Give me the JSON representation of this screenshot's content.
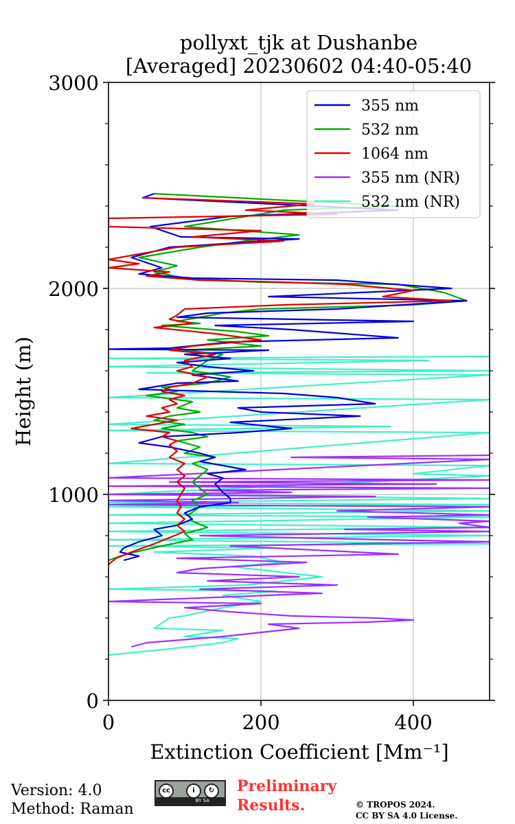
{
  "footer": {
    "version": "Version: 4.0",
    "method": "Method: Raman",
    "license_badge": "cc",
    "license_badge_sub": "BY SA",
    "preliminary_line1": "Preliminary",
    "preliminary_line2": "Results.",
    "copyright_line1": "© TROPOS 2024.",
    "copyright_line2": "CC BY SA 4.0 License."
  },
  "colors": {
    "355": "#0000dd",
    "532": "#00aa00",
    "1064": "#dd0000",
    "355nr": "#9b30ff",
    "532nr": "#40f0c8",
    "grid": "#b0b0b0"
  },
  "chart_data": {
    "type": "line",
    "title_line1": "pollyxt_tjk at Dushanbe",
    "title_line2": "[Averaged] 20230602 04:40-05:40",
    "xlabel": "Extinction Coefficient [Mm⁻¹]",
    "ylabel": "Height (m)",
    "xlim": [
      0,
      500
    ],
    "ylim": [
      0,
      3000
    ],
    "xticks": [
      0,
      200,
      400
    ],
    "yticks": [
      0,
      1000,
      2000,
      3000
    ],
    "grid": true,
    "legend_position": "top-right",
    "series": [
      {
        "name": "355 nm",
        "color_key": "355",
        "points": [
          [
            60,
            2460
          ],
          [
            45,
            2440
          ],
          [
            380,
            2380
          ],
          [
            160,
            2350
          ],
          [
            55,
            2300
          ],
          [
            95,
            2250
          ],
          [
            250,
            2240
          ],
          [
            80,
            2200
          ],
          [
            30,
            2150
          ],
          [
            70,
            2100
          ],
          [
            40,
            2070
          ],
          [
            110,
            2050
          ],
          [
            300,
            2040
          ],
          [
            450,
            2000
          ],
          [
            210,
            1960
          ],
          [
            470,
            1940
          ],
          [
            300,
            1900
          ],
          [
            130,
            1880
          ],
          [
            90,
            1860
          ],
          [
            400,
            1840
          ],
          [
            140,
            1820
          ],
          [
            240,
            1800
          ],
          [
            380,
            1760
          ],
          [
            160,
            1740
          ],
          [
            80,
            1710
          ],
          [
            0,
            1705
          ],
          [
            210,
            1700
          ],
          [
            100,
            1680
          ],
          [
            160,
            1660
          ],
          [
            90,
            1640
          ],
          [
            130,
            1620
          ],
          [
            190,
            1600
          ],
          [
            110,
            1580
          ],
          [
            170,
            1550
          ],
          [
            90,
            1540
          ],
          [
            40,
            1510
          ],
          [
            230,
            1490
          ],
          [
            300,
            1470
          ],
          [
            350,
            1440
          ],
          [
            170,
            1420
          ],
          [
            200,
            1400
          ],
          [
            330,
            1380
          ],
          [
            160,
            1350
          ],
          [
            240,
            1320
          ],
          [
            170,
            1300
          ],
          [
            70,
            1280
          ],
          [
            40,
            1250
          ],
          [
            80,
            1230
          ],
          [
            120,
            1200
          ],
          [
            140,
            1180
          ],
          [
            120,
            1160
          ],
          [
            150,
            1140
          ],
          [
            180,
            1120
          ],
          [
            130,
            1100
          ],
          [
            150,
            1080
          ],
          [
            140,
            1050
          ],
          [
            150,
            1010
          ],
          [
            160,
            980
          ],
          [
            160,
            960
          ],
          [
            120,
            940
          ],
          [
            100,
            910
          ],
          [
            110,
            880
          ],
          [
            90,
            850
          ],
          [
            60,
            830
          ],
          [
            70,
            800
          ],
          [
            40,
            770
          ],
          [
            20,
            740
          ],
          [
            15,
            720
          ],
          [
            40,
            700
          ],
          [
            20,
            680
          ]
        ]
      },
      {
        "name": "532 nm",
        "color_key": "532",
        "points": [
          [
            60,
            2460
          ],
          [
            380,
            2400
          ],
          [
            230,
            2380
          ],
          [
            100,
            2300
          ],
          [
            250,
            2260
          ],
          [
            180,
            2230
          ],
          [
            120,
            2200
          ],
          [
            40,
            2150
          ],
          [
            90,
            2110
          ],
          [
            60,
            2080
          ],
          [
            100,
            2050
          ],
          [
            200,
            2030
          ],
          [
            380,
            2020
          ],
          [
            440,
            1980
          ],
          [
            470,
            1940
          ],
          [
            400,
            1920
          ],
          [
            200,
            1900
          ],
          [
            150,
            1880
          ],
          [
            120,
            1860
          ],
          [
            90,
            1840
          ],
          [
            120,
            1830
          ],
          [
            70,
            1820
          ],
          [
            170,
            1790
          ],
          [
            210,
            1770
          ],
          [
            130,
            1750
          ],
          [
            200,
            1720
          ],
          [
            100,
            1700
          ],
          [
            150,
            1680
          ],
          [
            130,
            1650
          ],
          [
            110,
            1600
          ],
          [
            160,
            1570
          ],
          [
            130,
            1540
          ],
          [
            70,
            1520
          ],
          [
            90,
            1500
          ],
          [
            50,
            1480
          ],
          [
            110,
            1450
          ],
          [
            90,
            1420
          ],
          [
            120,
            1400
          ],
          [
            80,
            1380
          ],
          [
            60,
            1360
          ],
          [
            100,
            1340
          ],
          [
            70,
            1320
          ],
          [
            110,
            1300
          ],
          [
            130,
            1280
          ],
          [
            90,
            1260
          ],
          [
            120,
            1230
          ],
          [
            100,
            1200
          ],
          [
            140,
            1180
          ],
          [
            110,
            1150
          ],
          [
            130,
            1120
          ],
          [
            120,
            1090
          ],
          [
            110,
            1060
          ],
          [
            120,
            1030
          ],
          [
            130,
            1000
          ],
          [
            110,
            970
          ],
          [
            120,
            940
          ],
          [
            105,
            900
          ],
          [
            110,
            870
          ],
          [
            130,
            840
          ],
          [
            100,
            810
          ],
          [
            110,
            780
          ],
          [
            70,
            750
          ],
          [
            35,
            720
          ],
          [
            15,
            700
          ],
          [
            0,
            680
          ]
        ]
      },
      {
        "name": "1064 nm",
        "color_key": "1064",
        "points": [
          [
            45,
            2440
          ],
          [
            270,
            2410
          ],
          [
            180,
            2380
          ],
          [
            300,
            2360
          ],
          [
            0,
            2340
          ],
          [
            0,
            2300
          ],
          [
            200,
            2280
          ],
          [
            110,
            2250
          ],
          [
            230,
            2230
          ],
          [
            90,
            2200
          ],
          [
            0,
            2140
          ],
          [
            40,
            2120
          ],
          [
            0,
            2100
          ],
          [
            80,
            2080
          ],
          [
            50,
            2060
          ],
          [
            120,
            2040
          ],
          [
            230,
            2030
          ],
          [
            310,
            2020
          ],
          [
            400,
            1990
          ],
          [
            360,
            1960
          ],
          [
            450,
            1940
          ],
          [
            230,
            1920
          ],
          [
            100,
            1900
          ],
          [
            90,
            1870
          ],
          [
            80,
            1850
          ],
          [
            110,
            1830
          ],
          [
            60,
            1810
          ],
          [
            140,
            1780
          ],
          [
            200,
            1750
          ],
          [
            110,
            1720
          ],
          [
            80,
            1700
          ],
          [
            140,
            1680
          ],
          [
            100,
            1650
          ],
          [
            110,
            1620
          ],
          [
            90,
            1600
          ],
          [
            130,
            1570
          ],
          [
            110,
            1540
          ],
          [
            80,
            1520
          ],
          [
            70,
            1500
          ],
          [
            100,
            1480
          ],
          [
            80,
            1460
          ],
          [
            90,
            1440
          ],
          [
            70,
            1420
          ],
          [
            80,
            1400
          ],
          [
            50,
            1380
          ],
          [
            90,
            1360
          ],
          [
            60,
            1340
          ],
          [
            30,
            1320
          ],
          [
            80,
            1300
          ],
          [
            70,
            1280
          ],
          [
            90,
            1260
          ],
          [
            80,
            1240
          ],
          [
            90,
            1210
          ],
          [
            80,
            1180
          ],
          [
            100,
            1150
          ],
          [
            90,
            1120
          ],
          [
            100,
            1090
          ],
          [
            90,
            1060
          ],
          [
            100,
            1030
          ],
          [
            95,
            1000
          ],
          [
            90,
            970
          ],
          [
            95,
            940
          ],
          [
            90,
            910
          ],
          [
            100,
            880
          ],
          [
            90,
            850
          ],
          [
            100,
            820
          ],
          [
            80,
            790
          ],
          [
            60,
            760
          ],
          [
            30,
            720
          ],
          [
            10,
            690
          ],
          [
            0,
            660
          ]
        ]
      },
      {
        "name": "355 nm (NR)",
        "color_key": "355nr",
        "points": [
          [
            500,
            1190
          ],
          [
            240,
            1180
          ],
          [
            500,
            1170
          ],
          [
            0,
            1080
          ],
          [
            500,
            1070
          ],
          [
            80,
            1060
          ],
          [
            430,
            1050
          ],
          [
            0,
            1040
          ],
          [
            500,
            1030
          ],
          [
            120,
            1020
          ],
          [
            240,
            1010
          ],
          [
            0,
            1000
          ],
          [
            350,
            990
          ],
          [
            0,
            970
          ],
          [
            170,
            960
          ],
          [
            0,
            950
          ],
          [
            500,
            940
          ],
          [
            300,
            920
          ],
          [
            500,
            900
          ],
          [
            340,
            890
          ],
          [
            500,
            870
          ],
          [
            460,
            860
          ],
          [
            500,
            840
          ],
          [
            310,
            830
          ],
          [
            500,
            820
          ],
          [
            120,
            800
          ],
          [
            360,
            780
          ],
          [
            500,
            770
          ],
          [
            160,
            750
          ],
          [
            380,
            710
          ],
          [
            90,
            690
          ],
          [
            260,
            670
          ],
          [
            120,
            640
          ],
          [
            90,
            620
          ],
          [
            250,
            600
          ],
          [
            130,
            580
          ],
          [
            300,
            560
          ],
          [
            120,
            540
          ],
          [
            280,
            520
          ],
          [
            140,
            500
          ],
          [
            0,
            480
          ],
          [
            200,
            470
          ],
          [
            100,
            450
          ],
          [
            160,
            430
          ],
          [
            240,
            410
          ],
          [
            350,
            400
          ],
          [
            400,
            390
          ],
          [
            340,
            380
          ],
          [
            210,
            370
          ],
          [
            250,
            350
          ],
          [
            200,
            330
          ],
          [
            150,
            310
          ],
          [
            50,
            280
          ],
          [
            30,
            260
          ]
        ]
      },
      {
        "name": "532 nm (NR)",
        "color_key": "532nr",
        "points": [
          [
            500,
            1670
          ],
          [
            0,
            1660
          ],
          [
            420,
            1650
          ],
          [
            0,
            1620
          ],
          [
            500,
            1600
          ],
          [
            50,
            1590
          ],
          [
            500,
            1580
          ],
          [
            0,
            1470
          ],
          [
            500,
            1460
          ],
          [
            0,
            1340
          ],
          [
            370,
            1330
          ],
          [
            0,
            1310
          ],
          [
            500,
            1300
          ],
          [
            0,
            1150
          ],
          [
            500,
            1140
          ],
          [
            400,
            1100
          ],
          [
            500,
            1090
          ],
          [
            0,
            1000
          ],
          [
            500,
            980
          ],
          [
            0,
            960
          ],
          [
            500,
            950
          ],
          [
            0,
            940
          ],
          [
            500,
            920
          ],
          [
            0,
            900
          ],
          [
            500,
            890
          ],
          [
            0,
            860
          ],
          [
            500,
            840
          ],
          [
            0,
            820
          ],
          [
            500,
            800
          ],
          [
            0,
            780
          ],
          [
            500,
            760
          ],
          [
            0,
            750
          ],
          [
            220,
            740
          ],
          [
            60,
            720
          ],
          [
            190,
            700
          ],
          [
            230,
            670
          ],
          [
            160,
            650
          ],
          [
            280,
            600
          ],
          [
            180,
            560
          ],
          [
            0,
            540
          ],
          [
            220,
            530
          ],
          [
            150,
            510
          ],
          [
            200,
            480
          ],
          [
            150,
            450
          ],
          [
            100,
            410
          ],
          [
            80,
            400
          ],
          [
            60,
            350
          ],
          [
            150,
            340
          ],
          [
            100,
            310
          ],
          [
            170,
            300
          ],
          [
            150,
            280
          ],
          [
            80,
            250
          ],
          [
            0,
            220
          ]
        ]
      }
    ]
  }
}
